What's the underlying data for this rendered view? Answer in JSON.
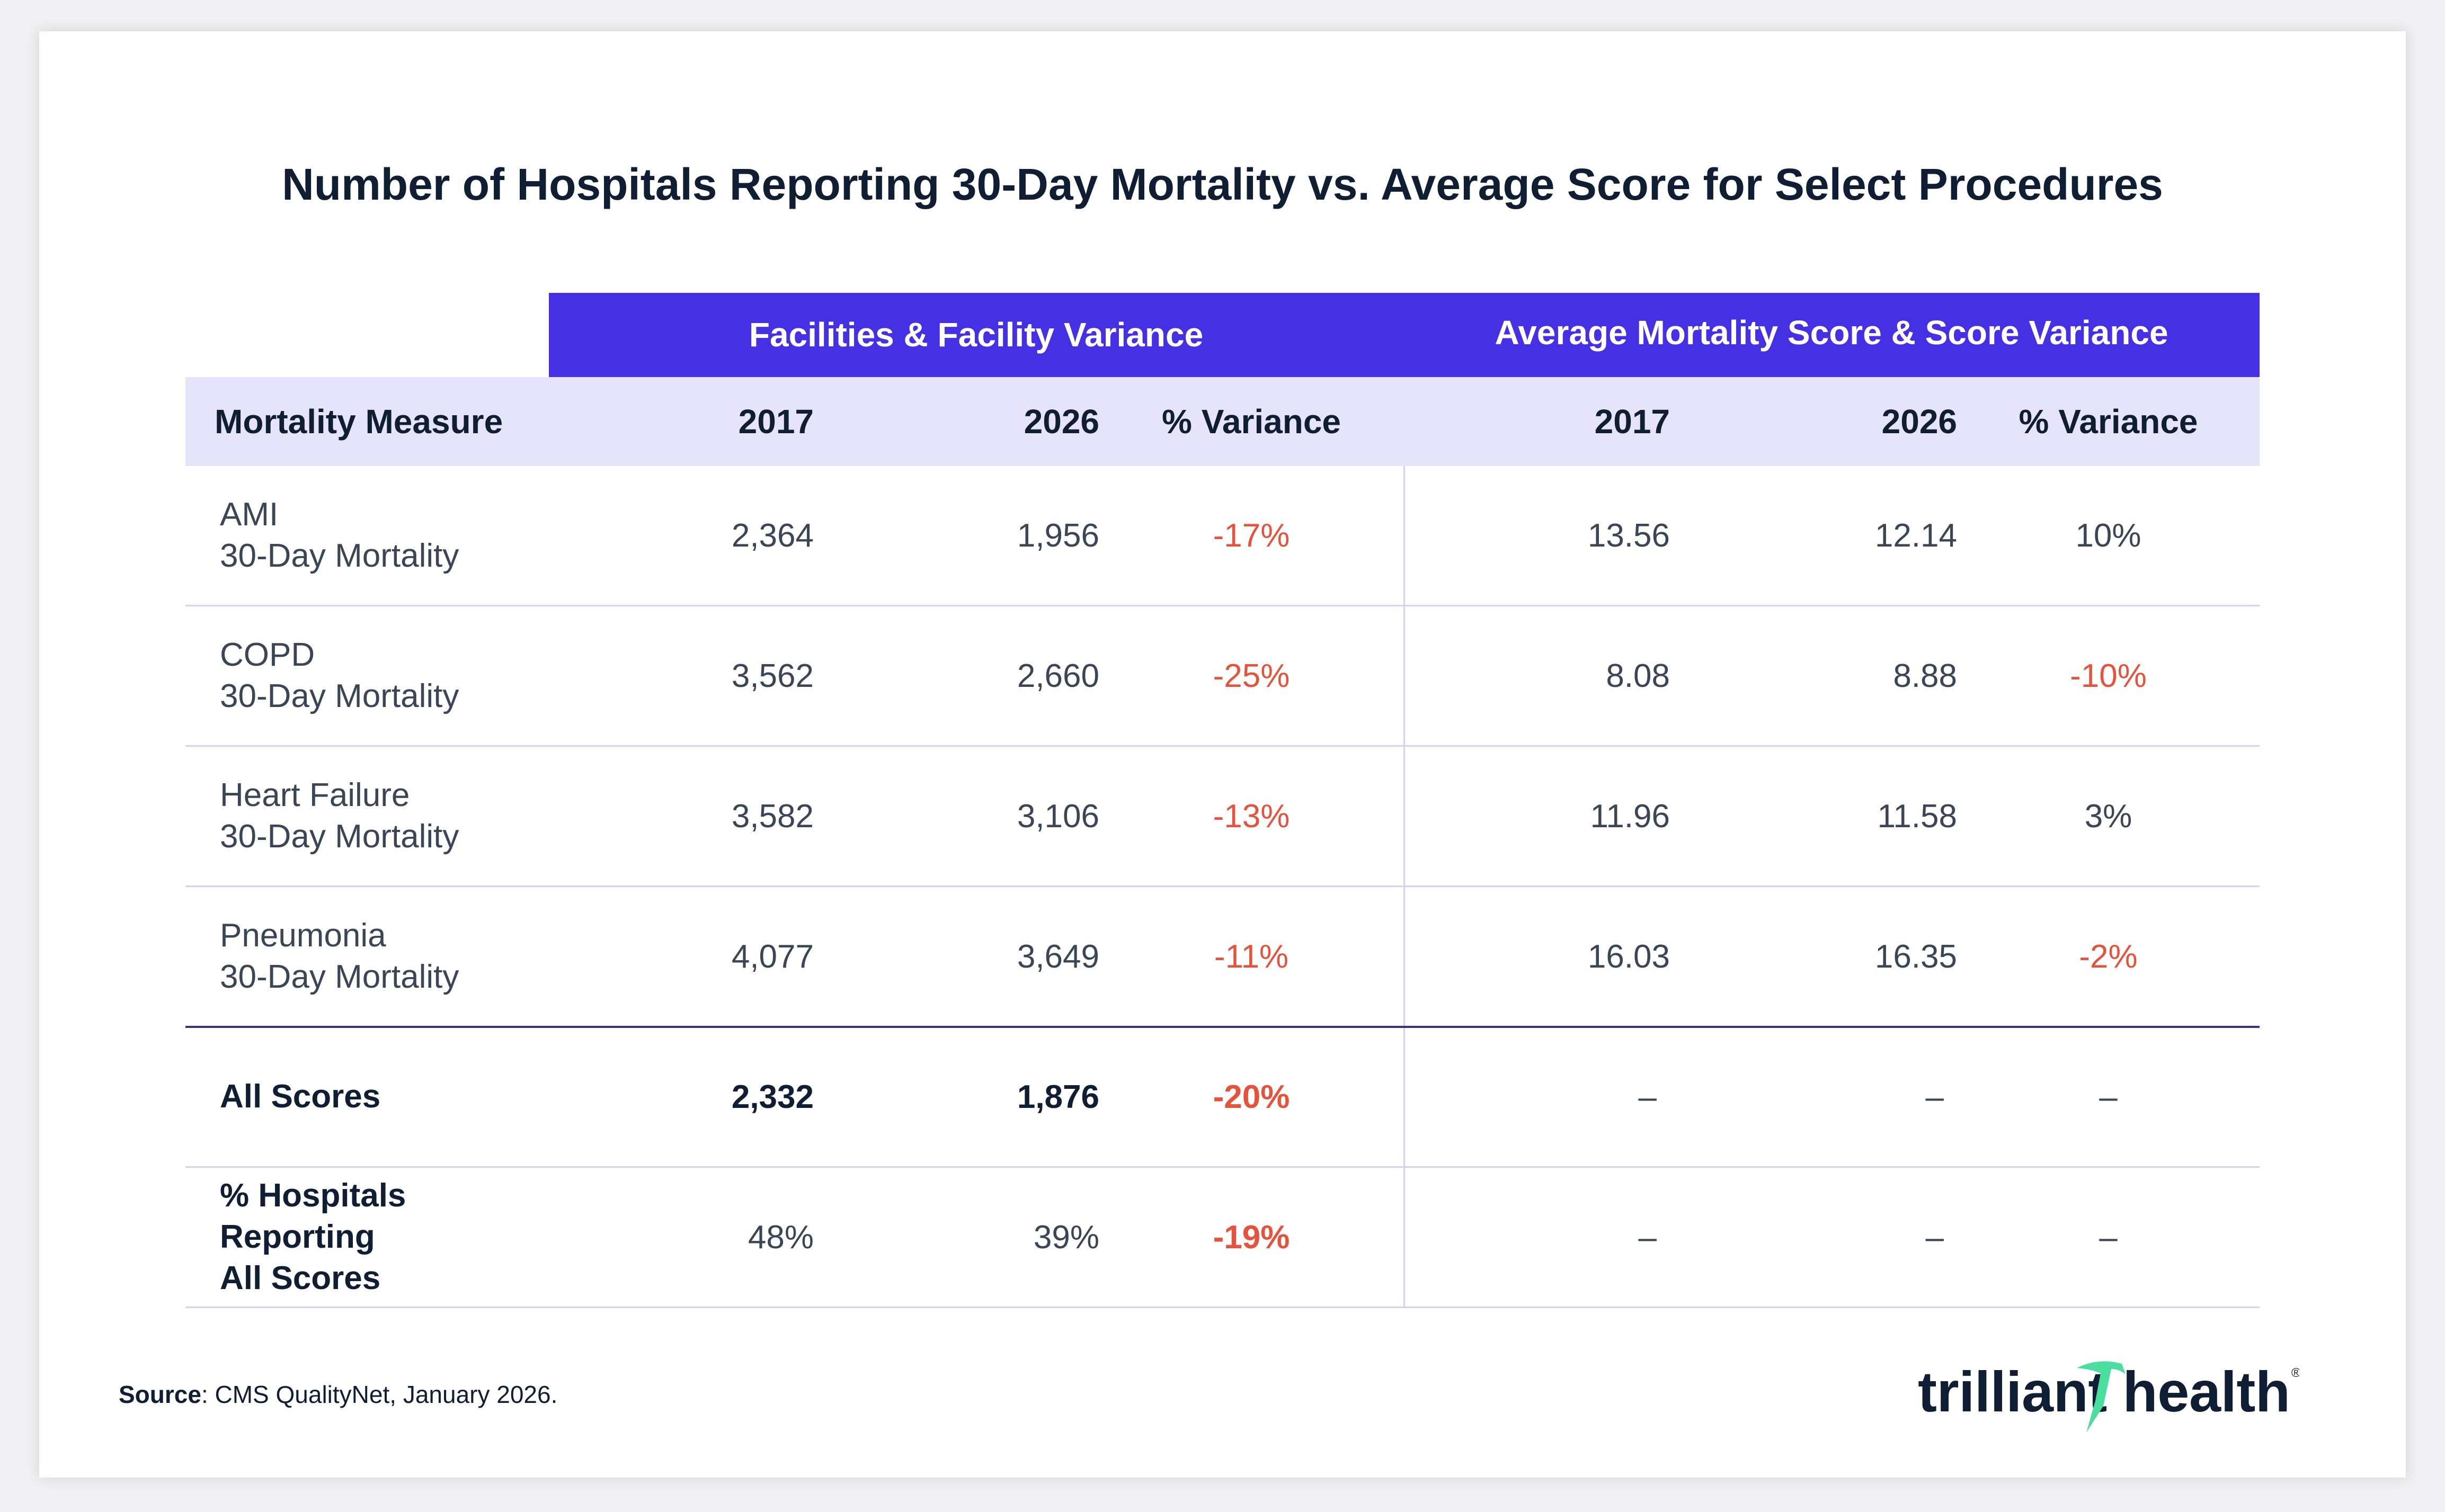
{
  "title": "Number of Hospitals Reporting 30-Day Mortality vs. Average Score for Select Procedures",
  "groups": {
    "facilities": "Facilities & Facility Variance",
    "scores": "Average Mortality Score & Score Variance"
  },
  "headers": [
    "Mortality Measure",
    "2017",
    "2026",
    "% Variance",
    "2017",
    "2026",
    "% Variance"
  ],
  "rows": [
    {
      "name": "AMI",
      "sub": "30-Day Mortality",
      "f2017": "2,364",
      "f2026": "1,956",
      "fvar": "-17%",
      "s2017": "13.56",
      "s2026": "12.14",
      "svar": "10%"
    },
    {
      "name": "COPD",
      "sub": "30-Day Mortality",
      "f2017": "3,562",
      "f2026": "2,660",
      "fvar": "-25%",
      "s2017": "8.08",
      "s2026": "8.88",
      "svar": "-10%"
    },
    {
      "name": "Heart Failure",
      "sub": "30-Day Mortality",
      "f2017": "3,582",
      "f2026": "3,106",
      "fvar": "-13%",
      "s2017": "11.96",
      "s2026": "11.58",
      "svar": "3%"
    },
    {
      "name": "Pneumonia",
      "sub": "30-Day Mortality",
      "f2017": "4,077",
      "f2026": "3,649",
      "fvar": "-11%",
      "s2017": "16.03",
      "s2026": "16.35",
      "svar": "-2%"
    }
  ],
  "summary": [
    {
      "name": "All Scores",
      "f2017": "2,332",
      "f2026": "1,876",
      "fvar": "-20%",
      "s2017": "–",
      "s2026": "–",
      "svar": "–"
    },
    {
      "name": "% Hospitals Reporting All Scores",
      "f2017": "48%",
      "f2026": "39%",
      "fvar": "-19%",
      "s2017": "–",
      "s2026": "–",
      "svar": "–"
    }
  ],
  "source": {
    "label": "Source",
    "text": ": CMS QualityNet, January 2026."
  },
  "logo": {
    "text": "trilliant health",
    "brand_color": "#0f1e33",
    "accent": "#4ade9f"
  },
  "colors": {
    "header": "#4630e3",
    "subheader": "#e6e4fa",
    "negative": "#e5533c"
  }
}
